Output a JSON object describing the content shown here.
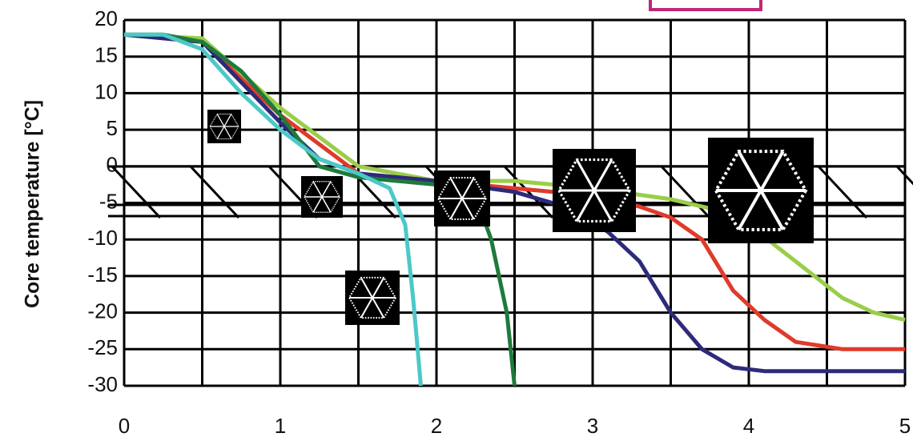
{
  "chart_data": {
    "type": "line",
    "y_label": "Core temperature [°C]",
    "xlim": [
      0,
      5
    ],
    "xticks": [
      0,
      1,
      2,
      3,
      4,
      5
    ],
    "xgrid": [
      0,
      0.5,
      1,
      1.5,
      2,
      2.5,
      3,
      3.5,
      4,
      4.5,
      5
    ],
    "ylim": [
      -30,
      20
    ],
    "yticks": [
      -30,
      -25,
      -20,
      -15,
      -10,
      -5,
      0,
      5,
      10,
      15,
      20
    ],
    "grid": true,
    "series": [
      {
        "color": "#9acd4a",
        "x": [
          0,
          0.5,
          1,
          1.5,
          2,
          2.5,
          3,
          3.5,
          3.8,
          4,
          4.3,
          4.6,
          4.8,
          5
        ],
        "values": [
          18,
          17.5,
          8,
          0,
          -2,
          -2,
          -3,
          -4.5,
          -6,
          -8,
          -13,
          -18,
          -20,
          -21
        ]
      },
      {
        "color": "#e03a2a",
        "x": [
          0,
          0.5,
          1,
          1.5,
          2,
          2.5,
          3,
          3.3,
          3.5,
          3.7,
          3.9,
          4.1,
          4.3,
          4.6,
          5
        ],
        "values": [
          18,
          17,
          7,
          -1,
          -2,
          -3,
          -4,
          -5.5,
          -7,
          -10,
          -17,
          -21,
          -24,
          -25,
          -25
        ]
      },
      {
        "color": "#2e2a7a",
        "x": [
          0,
          0.5,
          1,
          1.25,
          1.5,
          2,
          2.5,
          2.9,
          3.1,
          3.3,
          3.5,
          3.7,
          3.9,
          4.1,
          4.5,
          5
        ],
        "values": [
          18,
          17,
          6,
          1,
          -1,
          -2,
          -3.5,
          -6,
          -9,
          -13,
          -20,
          -25,
          -27.5,
          -28,
          -28,
          -28
        ]
      },
      {
        "color": "#1e7a3c",
        "x": [
          0,
          0.25,
          0.5,
          0.75,
          1,
          1.25,
          1.5,
          1.75,
          2,
          2.25,
          2.35,
          2.45,
          2.5
        ],
        "values": [
          18,
          18,
          17,
          13,
          7,
          0,
          -1.5,
          -2,
          -2.5,
          -4,
          -10,
          -20,
          -30
        ]
      },
      {
        "color": "#4cc8c8",
        "x": [
          0,
          0.25,
          0.5,
          0.75,
          1,
          1.25,
          1.5,
          1.7,
          1.8,
          1.85,
          1.9
        ],
        "values": [
          18,
          18,
          16,
          10,
          5,
          1,
          -1,
          -3,
          -8,
          -18,
          -30
        ]
      }
    ]
  }
}
